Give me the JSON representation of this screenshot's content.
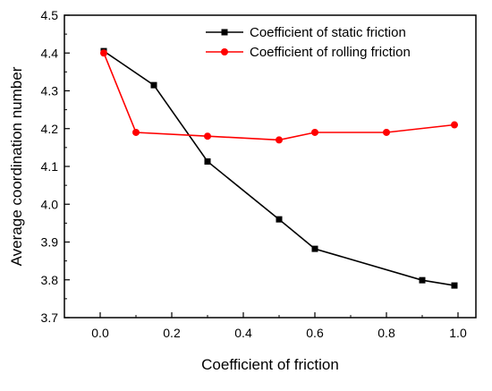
{
  "chart_data": {
    "type": "line",
    "xlabel": "Coefficient of friction",
    "ylabel": "Average coordination number",
    "xlim": [
      -0.1,
      1.05
    ],
    "ylim": [
      3.7,
      4.5
    ],
    "xticks": [
      0.0,
      0.2,
      0.4,
      0.6,
      0.8,
      1.0
    ],
    "xtick_labels": [
      "0.0",
      "0.2",
      "0.4",
      "0.6",
      "0.8",
      "1.0"
    ],
    "yticks": [
      3.7,
      3.8,
      3.9,
      4.0,
      4.1,
      4.2,
      4.3,
      4.4,
      4.5
    ],
    "ytick_labels": [
      "3.7",
      "3.8",
      "3.9",
      "4.0",
      "4.1",
      "4.2",
      "4.3",
      "4.4",
      "4.5"
    ],
    "grid": false,
    "legend_position": "top-right",
    "series": [
      {
        "name": "Coefficient of static friction",
        "color": "#000000",
        "marker": "square",
        "x": [
          0.01,
          0.15,
          0.3,
          0.5,
          0.6,
          0.9,
          0.99
        ],
        "y": [
          4.405,
          4.315,
          4.113,
          3.96,
          3.882,
          3.799,
          3.785
        ]
      },
      {
        "name": "Coefficient of rolling friction",
        "color": "#ff0000",
        "marker": "circle",
        "x": [
          0.01,
          0.1,
          0.3,
          0.5,
          0.6,
          0.8,
          0.99
        ],
        "y": [
          4.4,
          4.19,
          4.18,
          4.17,
          4.19,
          4.19,
          4.21
        ]
      }
    ]
  }
}
